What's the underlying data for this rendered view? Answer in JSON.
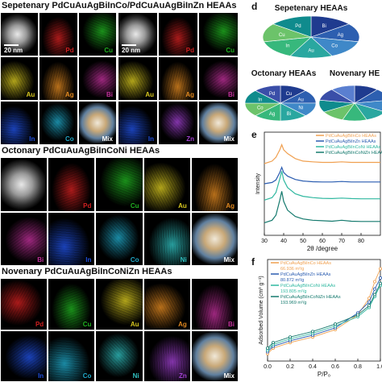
{
  "section_a": {
    "title": "Sepetenary PdCuAuAgBiInCo/PdCuAuAgBiInZn HEAAs",
    "scale": "20 nm",
    "tiles_left": [
      {
        "label": "",
        "color": "#888888"
      },
      {
        "label": "Pd",
        "color": "#d02020"
      },
      {
        "label": "Cu",
        "color": "#20b020"
      },
      {
        "label": "Au",
        "color": "#d8c820"
      },
      {
        "label": "Ag",
        "color": "#e08820"
      },
      {
        "label": "Bi",
        "color": "#c0309a"
      },
      {
        "label": "In",
        "color": "#2050e0"
      },
      {
        "label": "Co",
        "color": "#20a8c8"
      },
      {
        "label": "Mix",
        "color": "#d0c0a0"
      }
    ],
    "tiles_right": [
      {
        "label": "",
        "color": "#888888"
      },
      {
        "label": "Pd",
        "color": "#d02020"
      },
      {
        "label": "Cu",
        "color": "#20b020"
      },
      {
        "label": "Au",
        "color": "#d8c820"
      },
      {
        "label": "Ag",
        "color": "#e08820"
      },
      {
        "label": "Bi",
        "color": "#c0309a"
      },
      {
        "label": "In",
        "color": "#2050e0"
      },
      {
        "label": "Zn",
        "color": "#a040d0"
      },
      {
        "label": "Mix",
        "color": "#d0c0a0"
      }
    ]
  },
  "section_b": {
    "title": "Octonary  PdCuAuAgBiInCoNi HEAAs",
    "tiles": [
      {
        "label": "",
        "color": "#888888"
      },
      {
        "label": "Pd",
        "color": "#d02020"
      },
      {
        "label": "Cu",
        "color": "#20b020"
      },
      {
        "label": "Au",
        "color": "#d8c820"
      },
      {
        "label": "Ag",
        "color": "#e08820"
      },
      {
        "label": "Bi",
        "color": "#c0309a"
      },
      {
        "label": "In",
        "color": "#2050e0"
      },
      {
        "label": "Co",
        "color": "#20a8c8"
      },
      {
        "label": "Ni",
        "color": "#30c0c0"
      },
      {
        "label": "Mix",
        "color": "#d0c0a0"
      }
    ]
  },
  "section_c": {
    "title": "Novenary  PdCuAuAgBiInCoNiZn HEAAs",
    "tiles": [
      {
        "label": "Pd",
        "color": "#d02020"
      },
      {
        "label": "Cu",
        "color": "#20b020"
      },
      {
        "label": "Au",
        "color": "#d8c820"
      },
      {
        "label": "Ag",
        "color": "#e08820"
      },
      {
        "label": "Bi",
        "color": "#c0309a"
      },
      {
        "label": "In",
        "color": "#2050e0"
      },
      {
        "label": "Co",
        "color": "#20a8c8"
      },
      {
        "label": "Ni",
        "color": "#30c0c0"
      },
      {
        "label": "Zn",
        "color": "#a040d0"
      },
      {
        "label": "Mix",
        "color": "#d0c0a0"
      }
    ]
  },
  "panel_d": {
    "letter": "d",
    "pies": [
      {
        "title": "Sepetenary HEAAs",
        "labels": [
          "Bi",
          "Ag",
          "Co",
          "Au",
          "In",
          "Cu",
          "Pd"
        ],
        "values": [
          1,
          1,
          1,
          1,
          1,
          1,
          1
        ]
      },
      {
        "title": "Octonary HEAAs",
        "labels": [
          "Cu",
          "Au",
          "Ni",
          "Bi",
          "Ag",
          "Co",
          "In",
          "Pd"
        ],
        "values": [
          1,
          1,
          1,
          1,
          1,
          1,
          1,
          1
        ]
      },
      {
        "title": "Novenary HE",
        "labels": [
          "",
          "",
          "",
          "",
          "",
          "",
          "",
          "",
          ""
        ],
        "values": [
          1,
          1,
          1,
          1,
          1,
          1,
          1,
          1,
          1
        ]
      }
    ],
    "slice_colors": [
      "#1f3b8f",
      "#2d5fb0",
      "#3f88c8",
      "#2aa7a0",
      "#37b87c",
      "#6cc36a",
      "#0f8b8d",
      "#3a4ea8",
      "#5a7fd0"
    ]
  },
  "chart_data": [
    {
      "type": "line",
      "panel": "e",
      "xlabel": "2θ /degree",
      "ylabel": "Intensity",
      "xlim": [
        30,
        90
      ],
      "xticks": [
        30,
        40,
        50,
        60,
        70,
        80
      ],
      "legend_position": "top-right",
      "series": [
        {
          "name": "PdCuAuAgBiInCo HEAAs",
          "color": "#f0a050",
          "x": [
            30,
            34,
            36,
            38,
            39,
            40,
            42,
            46,
            50,
            55,
            60,
            65,
            70,
            75,
            80,
            85,
            90
          ],
          "y": [
            3.35,
            3.45,
            3.6,
            3.9,
            4.1,
            3.9,
            3.75,
            3.55,
            3.45,
            3.42,
            3.4,
            3.4,
            3.42,
            3.4,
            3.4,
            3.4,
            3.4
          ]
        },
        {
          "name": "PdCuAuAgBiInZn HEAAs",
          "color": "#2a5cb0",
          "x": [
            30,
            34,
            36,
            38,
            39,
            40,
            42,
            46,
            50,
            55,
            60,
            65,
            70,
            75,
            80,
            85,
            90
          ],
          "y": [
            2.55,
            2.6,
            2.7,
            3.0,
            3.2,
            3.0,
            2.85,
            2.72,
            2.66,
            2.63,
            2.62,
            2.62,
            2.64,
            2.62,
            2.62,
            2.62,
            2.62
          ]
        },
        {
          "name": "PdCuAuAgBiInCoNi HEAAs",
          "color": "#30b8a0",
          "x": [
            30,
            34,
            36,
            38,
            39,
            40,
            42,
            46,
            50,
            55,
            60,
            65,
            70,
            75,
            80,
            85,
            90
          ],
          "y": [
            1.9,
            2.0,
            2.2,
            2.75,
            3.05,
            2.7,
            2.4,
            2.15,
            2.05,
            2.0,
            1.97,
            1.96,
            1.98,
            1.96,
            1.95,
            1.95,
            1.95
          ]
        },
        {
          "name": "PdCuAuAgBiInCoNiZn HEAAs",
          "color": "#157a6e",
          "x": [
            30,
            34,
            36,
            38,
            39,
            40,
            42,
            46,
            50,
            55,
            60,
            65,
            70,
            75,
            80,
            85,
            90
          ],
          "y": [
            1.0,
            1.1,
            1.3,
            1.9,
            2.25,
            1.85,
            1.5,
            1.25,
            1.15,
            1.1,
            1.08,
            1.06,
            1.1,
            1.06,
            1.05,
            1.05,
            1.05
          ]
        }
      ]
    },
    {
      "type": "line",
      "panel": "f",
      "xlabel": "P/P₀",
      "ylabel": "Adsorbed Volume (cm³ g⁻¹)",
      "xlim": [
        0.0,
        1.0
      ],
      "xticks": [
        0.0,
        0.2,
        0.4,
        0.6,
        0.8,
        1.0
      ],
      "legend_position": "top-left",
      "series": [
        {
          "name": "PdCuAuAgBiInCo HEAAs",
          "annotation": "66.936 m²/g",
          "color": "#f0a050",
          "x": [
            0.0,
            0.05,
            0.2,
            0.4,
            0.6,
            0.8,
            0.9,
            0.95,
            1.0
          ],
          "y": [
            8,
            14,
            20,
            26,
            34,
            50,
            68,
            86,
            100
          ]
        },
        {
          "name": "PdCuAuAgBiInZn HEAAs",
          "annotation": "80.872 m²/g",
          "color": "#2a5cb0",
          "x": [
            0.0,
            0.05,
            0.2,
            0.4,
            0.6,
            0.8,
            0.9,
            0.95,
            1.0
          ],
          "y": [
            10,
            16,
            22,
            28,
            36,
            52,
            64,
            78,
            90
          ]
        },
        {
          "name": "PdCuAuAgBiInCoNi HEAAs",
          "annotation": "193.805 m²/g",
          "color": "#30b8a0",
          "x": [
            0.0,
            0.05,
            0.2,
            0.4,
            0.6,
            0.8,
            0.9,
            0.95,
            1.0
          ],
          "y": [
            12,
            18,
            24,
            30,
            38,
            48,
            58,
            70,
            82
          ]
        },
        {
          "name": "PdCuAuAgBiInCoNiZn HEAAs",
          "annotation": "193.969 m²/g",
          "color": "#157a6e",
          "x": [
            0.0,
            0.05,
            0.2,
            0.4,
            0.6,
            0.8,
            0.9,
            0.95,
            1.0
          ],
          "y": [
            14,
            20,
            26,
            32,
            40,
            50,
            60,
            72,
            84
          ]
        }
      ]
    }
  ]
}
